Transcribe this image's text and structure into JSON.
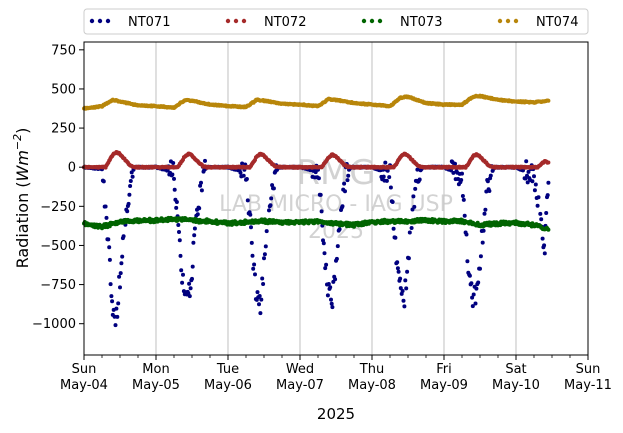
{
  "chart_data": {
    "type": "scatter",
    "title": "",
    "xlabel": "2025",
    "ylabel_main": "Radiation (",
    "ylabel_unit_base": "Wm",
    "ylabel_unit_exp": "−2",
    "ylabel_close": ")",
    "ylim": [
      -1200,
      800
    ],
    "xlim_days": [
      0,
      7
    ],
    "grid": "vertical-major",
    "legend_placement": "top",
    "yticks": [
      750,
      500,
      250,
      0,
      -250,
      -500,
      -750,
      -1000
    ],
    "ytick_labels": [
      "750",
      "500",
      "250",
      "0",
      "−250",
      "−500",
      "−750",
      "−1000"
    ],
    "xticks": [
      {
        "day": 0,
        "l1": "Sun",
        "l2": "May-04"
      },
      {
        "day": 1,
        "l1": "Mon",
        "l2": "May-05"
      },
      {
        "day": 2,
        "l1": "Tue",
        "l2": "May-06"
      },
      {
        "day": 3,
        "l1": "Wed",
        "l2": "May-07"
      },
      {
        "day": 4,
        "l1": "Thu",
        "l2": "May-08"
      },
      {
        "day": 5,
        "l1": "Fri",
        "l2": "May-09"
      },
      {
        "day": 6,
        "l1": "Sat",
        "l2": "May-10"
      },
      {
        "day": 7,
        "l1": "Sun",
        "l2": "May-11"
      }
    ],
    "watermark": [
      "RMG",
      "LAB MICRO - IAG USP",
      "2025"
    ],
    "series": [
      {
        "name": "NT071",
        "color": "#00007f",
        "x": [
          0,
          0.25,
          0.3,
          0.35,
          0.4,
          0.45,
          0.5,
          0.55,
          0.6,
          0.65,
          0.7,
          1,
          1.25,
          1.3,
          1.35,
          1.4,
          1.45,
          1.5,
          1.55,
          1.6,
          1.65,
          1.7,
          2,
          2.25,
          2.3,
          2.35,
          2.4,
          2.45,
          2.5,
          2.55,
          2.6,
          2.65,
          2.7,
          3,
          3.25,
          3.3,
          3.35,
          3.4,
          3.45,
          3.5,
          3.55,
          3.6,
          3.65,
          3.7,
          4,
          4.25,
          4.3,
          4.35,
          4.4,
          4.45,
          4.5,
          4.55,
          4.6,
          4.65,
          4.7,
          5,
          5.25,
          5.3,
          5.35,
          5.4,
          5.45,
          5.5,
          5.55,
          5.6,
          5.65,
          5.7,
          6,
          6.25,
          6.3,
          6.35,
          6.4,
          6.42,
          6.45
        ],
        "y": [
          0,
          -10,
          -250,
          -550,
          -900,
          -970,
          -700,
          -450,
          -250,
          -80,
          0,
          0,
          -30,
          -350,
          -650,
          -800,
          -830,
          -650,
          -400,
          -200,
          -60,
          0,
          0,
          -30,
          -300,
          -600,
          -850,
          -900,
          -650,
          -350,
          -150,
          -40,
          0,
          0,
          -30,
          -300,
          -600,
          -800,
          -850,
          -600,
          -350,
          -150,
          -40,
          0,
          0,
          -40,
          -350,
          -650,
          -800,
          -820,
          -600,
          -350,
          -150,
          -40,
          0,
          0,
          -50,
          -400,
          -700,
          -830,
          -800,
          -600,
          -350,
          -150,
          -40,
          0,
          0,
          -50,
          -200,
          -400,
          -500,
          -250,
          -100
        ]
      },
      {
        "name": "NT072",
        "color": "#a52a2a",
        "x": [
          0,
          0.3,
          0.35,
          0.4,
          0.45,
          0.5,
          0.55,
          0.6,
          0.65,
          0.7,
          1,
          1.3,
          1.35,
          1.4,
          1.45,
          1.5,
          1.55,
          1.6,
          1.65,
          1.7,
          2,
          2.3,
          2.35,
          2.4,
          2.45,
          2.5,
          2.55,
          2.6,
          2.65,
          2.7,
          3,
          3.3,
          3.35,
          3.4,
          3.45,
          3.5,
          3.55,
          3.6,
          3.65,
          3.7,
          4,
          4.3,
          4.35,
          4.4,
          4.45,
          4.5,
          4.55,
          4.6,
          4.65,
          4.7,
          5,
          5.3,
          5.35,
          5.4,
          5.45,
          5.5,
          5.55,
          5.6,
          5.65,
          5.7,
          6,
          6.3,
          6.35,
          6.4,
          6.45
        ],
        "y": [
          0,
          0,
          40,
          80,
          95,
          85,
          60,
          30,
          10,
          0,
          0,
          0,
          30,
          70,
          85,
          75,
          50,
          25,
          8,
          0,
          0,
          0,
          30,
          70,
          85,
          75,
          50,
          25,
          8,
          0,
          0,
          0,
          30,
          65,
          80,
          70,
          45,
          20,
          5,
          0,
          0,
          0,
          30,
          70,
          85,
          75,
          50,
          25,
          8,
          0,
          0,
          0,
          30,
          70,
          80,
          70,
          45,
          20,
          5,
          0,
          0,
          0,
          20,
          40,
          30
        ]
      },
      {
        "name": "NT073",
        "color": "#006400",
        "x": [
          0,
          0.25,
          0.5,
          0.75,
          1,
          1.25,
          1.5,
          1.75,
          2,
          2.25,
          2.5,
          2.75,
          3,
          3.25,
          3.5,
          3.75,
          4,
          4.25,
          4.5,
          4.75,
          5,
          5.25,
          5.5,
          5.75,
          6,
          6.25,
          6.45
        ],
        "y": [
          -360,
          -380,
          -350,
          -340,
          -340,
          -330,
          -340,
          -345,
          -360,
          -350,
          -345,
          -350,
          -350,
          -345,
          -360,
          -370,
          -350,
          -345,
          -345,
          -340,
          -345,
          -345,
          -370,
          -360,
          -355,
          -370,
          -400
        ]
      },
      {
        "name": "NT074",
        "color": "#b8860b",
        "x": [
          0,
          0.25,
          0.4,
          0.5,
          0.75,
          1,
          1.25,
          1.4,
          1.5,
          1.75,
          2,
          2.25,
          2.4,
          2.5,
          2.75,
          3,
          3.25,
          3.4,
          3.5,
          3.75,
          4,
          4.25,
          4.4,
          4.5,
          4.75,
          5,
          5.25,
          5.4,
          5.5,
          5.75,
          6,
          6.25,
          6.45
        ],
        "y": [
          375,
          390,
          430,
          420,
          395,
          390,
          380,
          430,
          425,
          400,
          390,
          385,
          430,
          425,
          405,
          400,
          390,
          435,
          430,
          410,
          400,
          390,
          445,
          450,
          410,
          400,
          400,
          450,
          455,
          430,
          420,
          415,
          425
        ]
      }
    ]
  }
}
